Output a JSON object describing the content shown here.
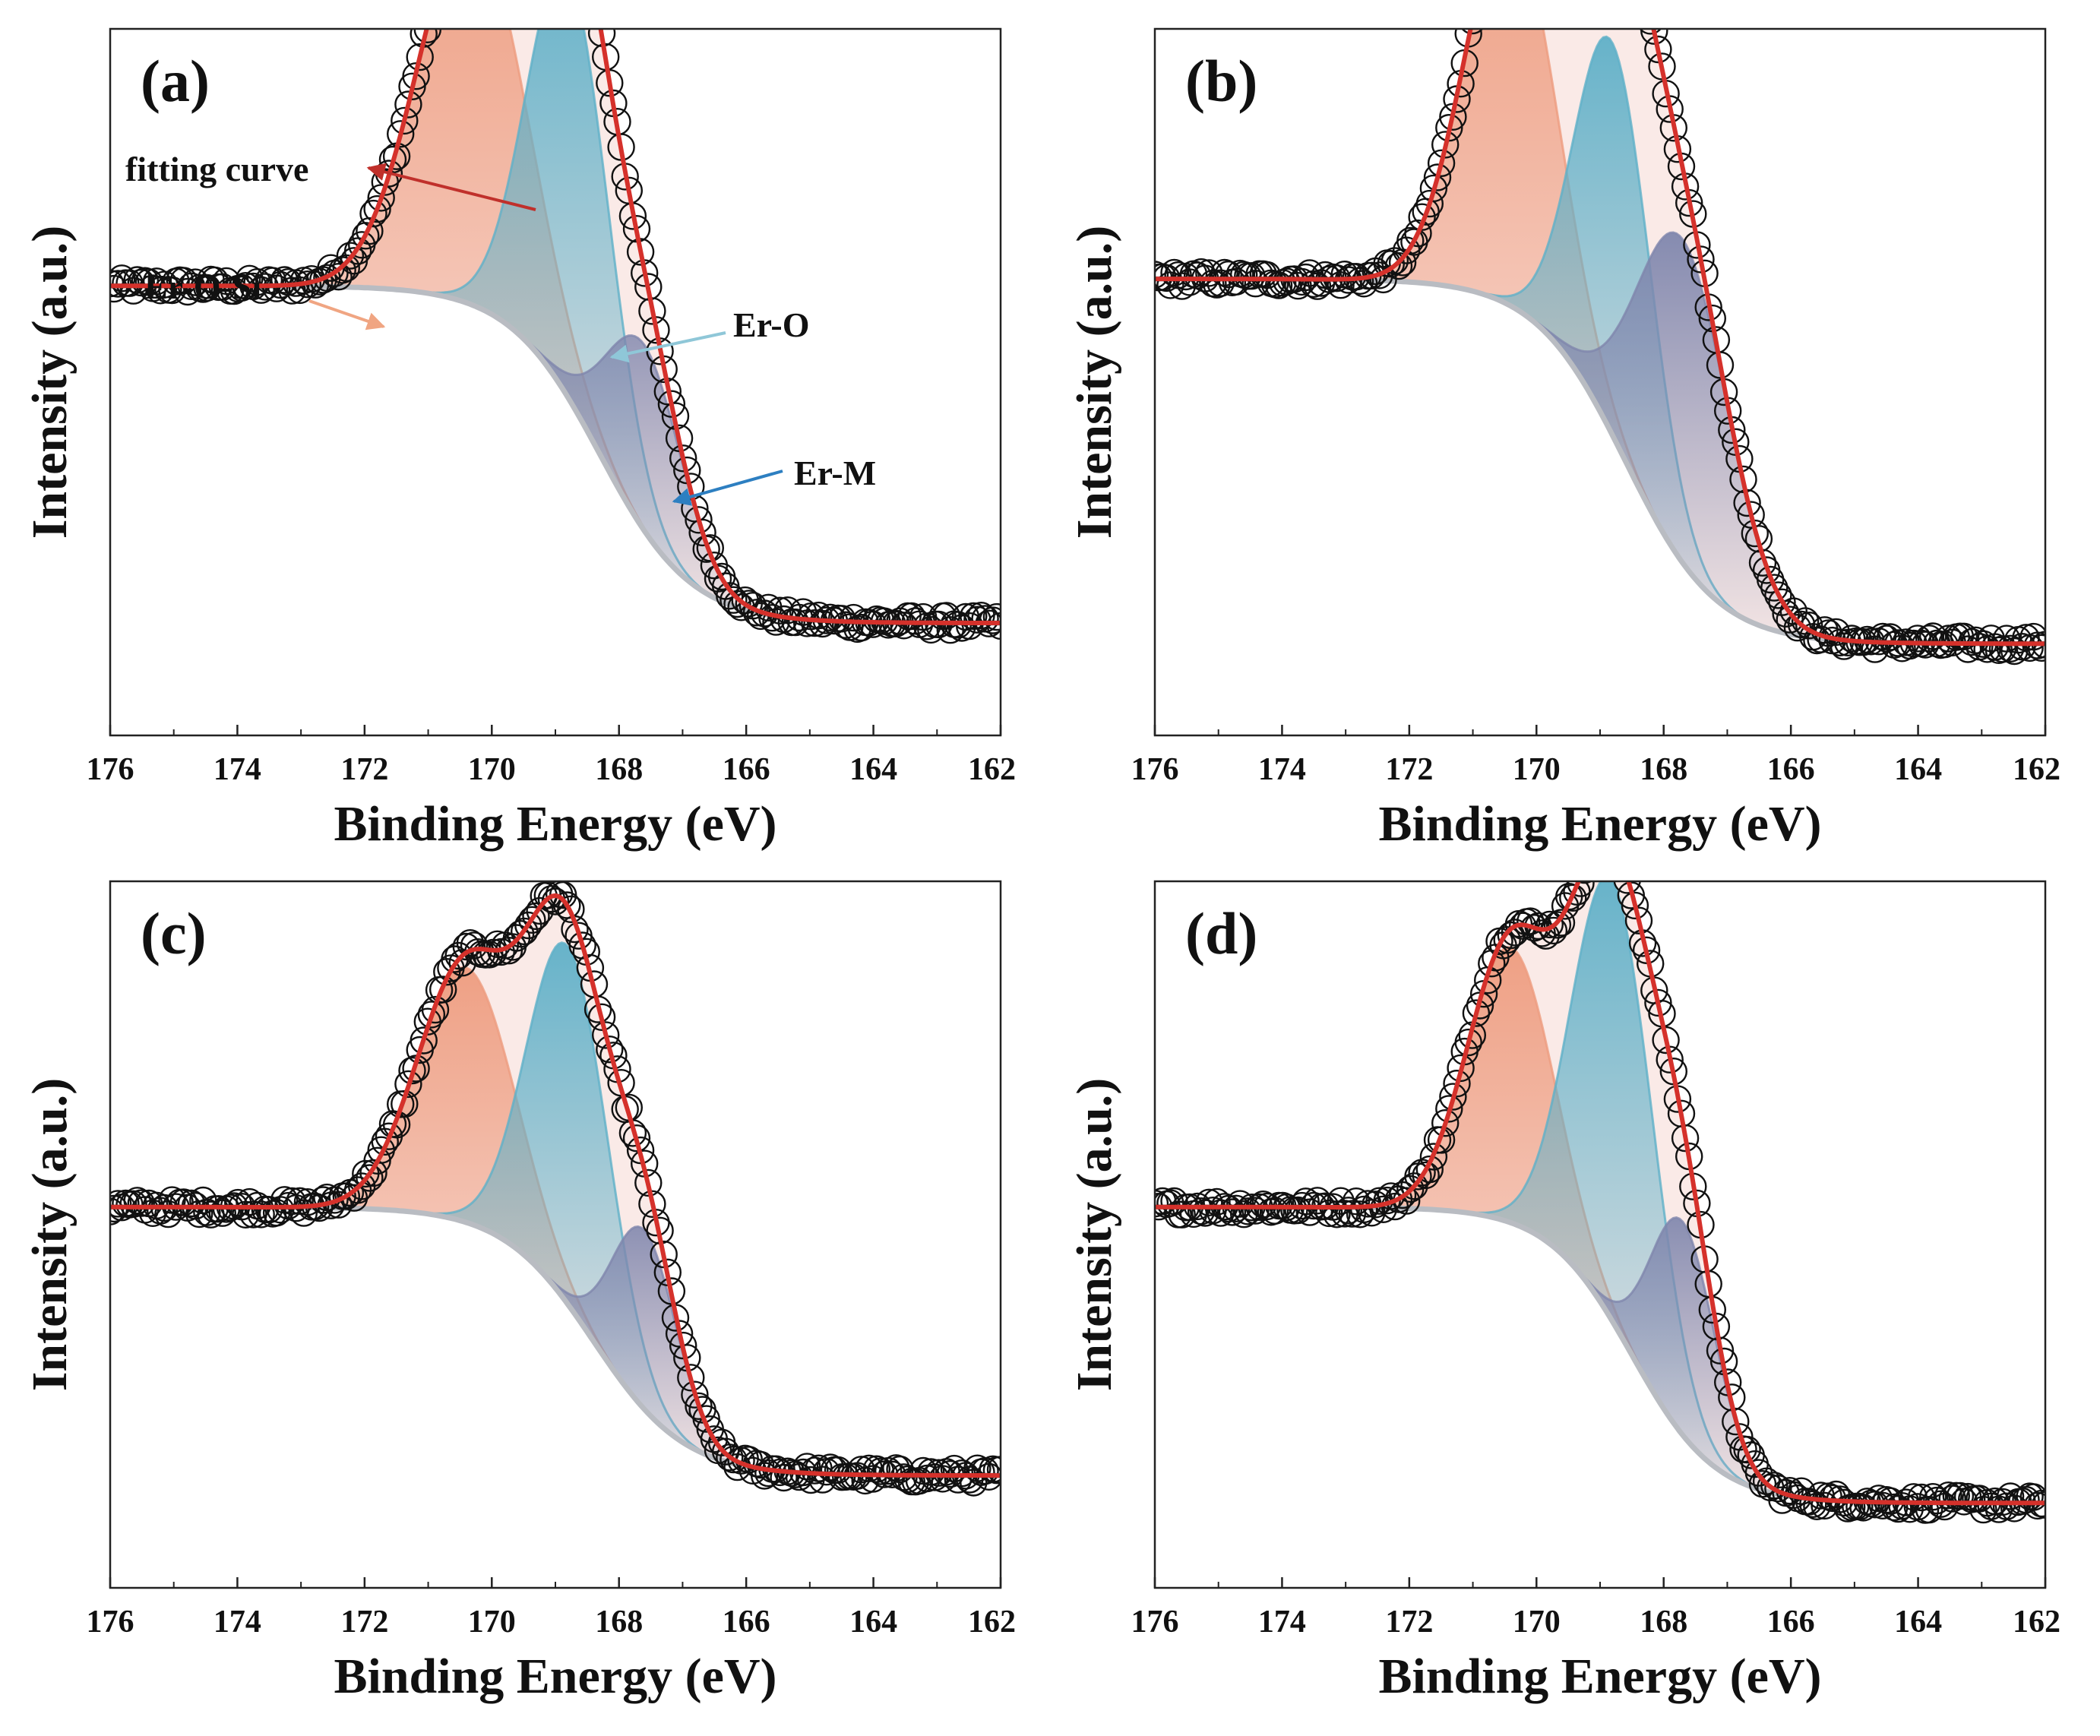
{
  "figure": {
    "description_free": true
  },
  "colors": {
    "envelope_fill": "#f9e6e3",
    "er_o_si": "#ee9c7f",
    "er_o": "#5fb0c8",
    "er_m": "#7f86ad",
    "fit": "#d5312b",
    "background": "#b9bcc2",
    "marker": "#111111",
    "arrow_fit": "#c0302b",
    "arrow_ero": "#8fc7d8",
    "arrow_erm": "#2d7fc1",
    "arrow_erosi": "#f0a582"
  },
  "chart_data": [
    {
      "type": "line",
      "panel": "(a)",
      "xlabel": "Binding Energy (eV)",
      "ylabel": "Intensity (a.u.)",
      "xlim": [
        176,
        162
      ],
      "ylim": [
        0,
        1
      ],
      "xticks": [
        "176",
        "174",
        "172",
        "170",
        "168",
        "166",
        "164",
        "162"
      ],
      "series": [
        {
          "name": "Er-O-Si",
          "center": 170.3,
          "fwhm": 2.0,
          "amp": 0.55
        },
        {
          "name": "Er-O",
          "center": 168.8,
          "fwhm": 1.5,
          "amp": 0.62
        },
        {
          "name": "Er-M",
          "center": 167.6,
          "fwhm": 1.4,
          "amp": 0.27
        }
      ],
      "background": {
        "high": 0.64,
        "low": 0.15,
        "step_center": 168.3,
        "step_width": 1.3
      },
      "annotations": [
        {
          "text": "fitting curve",
          "target": "fit"
        },
        {
          "text": "Er-O-Si",
          "target": "Er-O-Si"
        },
        {
          "text": "Er-O",
          "target": "Er-O"
        },
        {
          "text": "Er-M",
          "target": "Er-M"
        }
      ]
    },
    {
      "type": "line",
      "panel": "(b)",
      "xlabel": "Binding Energy (eV)",
      "ylabel": "Intensity (a.u.)",
      "xlim": [
        176,
        162
      ],
      "ylim": [
        0,
        1
      ],
      "xticks": [
        "176",
        "174",
        "172",
        "170",
        "168",
        "166",
        "164",
        "162"
      ],
      "series": [
        {
          "name": "Er-O-Si",
          "center": 170.4,
          "fwhm": 1.7,
          "amp": 0.56
        },
        {
          "name": "Er-O",
          "center": 168.8,
          "fwhm": 1.4,
          "amp": 0.57
        },
        {
          "name": "Er-M",
          "center": 167.7,
          "fwhm": 1.7,
          "amp": 0.47
        }
      ],
      "background": {
        "high": 0.65,
        "low": 0.12,
        "step_center": 168.6,
        "step_width": 1.3
      },
      "annotations": []
    },
    {
      "type": "line",
      "panel": "(c)",
      "xlabel": "Binding Energy (eV)",
      "ylabel": "Intensity (a.u.)",
      "xlim": [
        176,
        162
      ],
      "ylim": [
        0,
        1
      ],
      "xticks": [
        "176",
        "174",
        "172",
        "170",
        "168",
        "166",
        "164",
        "162"
      ],
      "series": [
        {
          "name": "Er-O-Si",
          "center": 170.4,
          "fwhm": 1.8,
          "amp": 0.37
        },
        {
          "name": "Er-O",
          "center": 168.8,
          "fwhm": 1.5,
          "amp": 0.52
        },
        {
          "name": "Er-M",
          "center": 167.6,
          "fwhm": 1.2,
          "amp": 0.26
        }
      ],
      "background": {
        "high": 0.54,
        "low": 0.15,
        "step_center": 168.4,
        "step_width": 1.3
      },
      "annotations": []
    },
    {
      "type": "line",
      "panel": "(d)",
      "xlabel": "Binding Energy (eV)",
      "ylabel": "Intensity (a.u.)",
      "xlim": [
        176,
        162
      ],
      "ylim": [
        0,
        1
      ],
      "xticks": [
        "176",
        "174",
        "172",
        "170",
        "168",
        "166",
        "164",
        "162"
      ],
      "series": [
        {
          "name": "Er-O-Si",
          "center": 170.4,
          "fwhm": 1.6,
          "amp": 0.4
        },
        {
          "name": "Er-O",
          "center": 168.8,
          "fwhm": 1.5,
          "amp": 0.64
        },
        {
          "name": "Er-M",
          "center": 167.7,
          "fwhm": 1.2,
          "amp": 0.31
        }
      ],
      "background": {
        "high": 0.54,
        "low": 0.11,
        "step_center": 168.5,
        "step_width": 1.2
      },
      "annotations": []
    }
  ]
}
